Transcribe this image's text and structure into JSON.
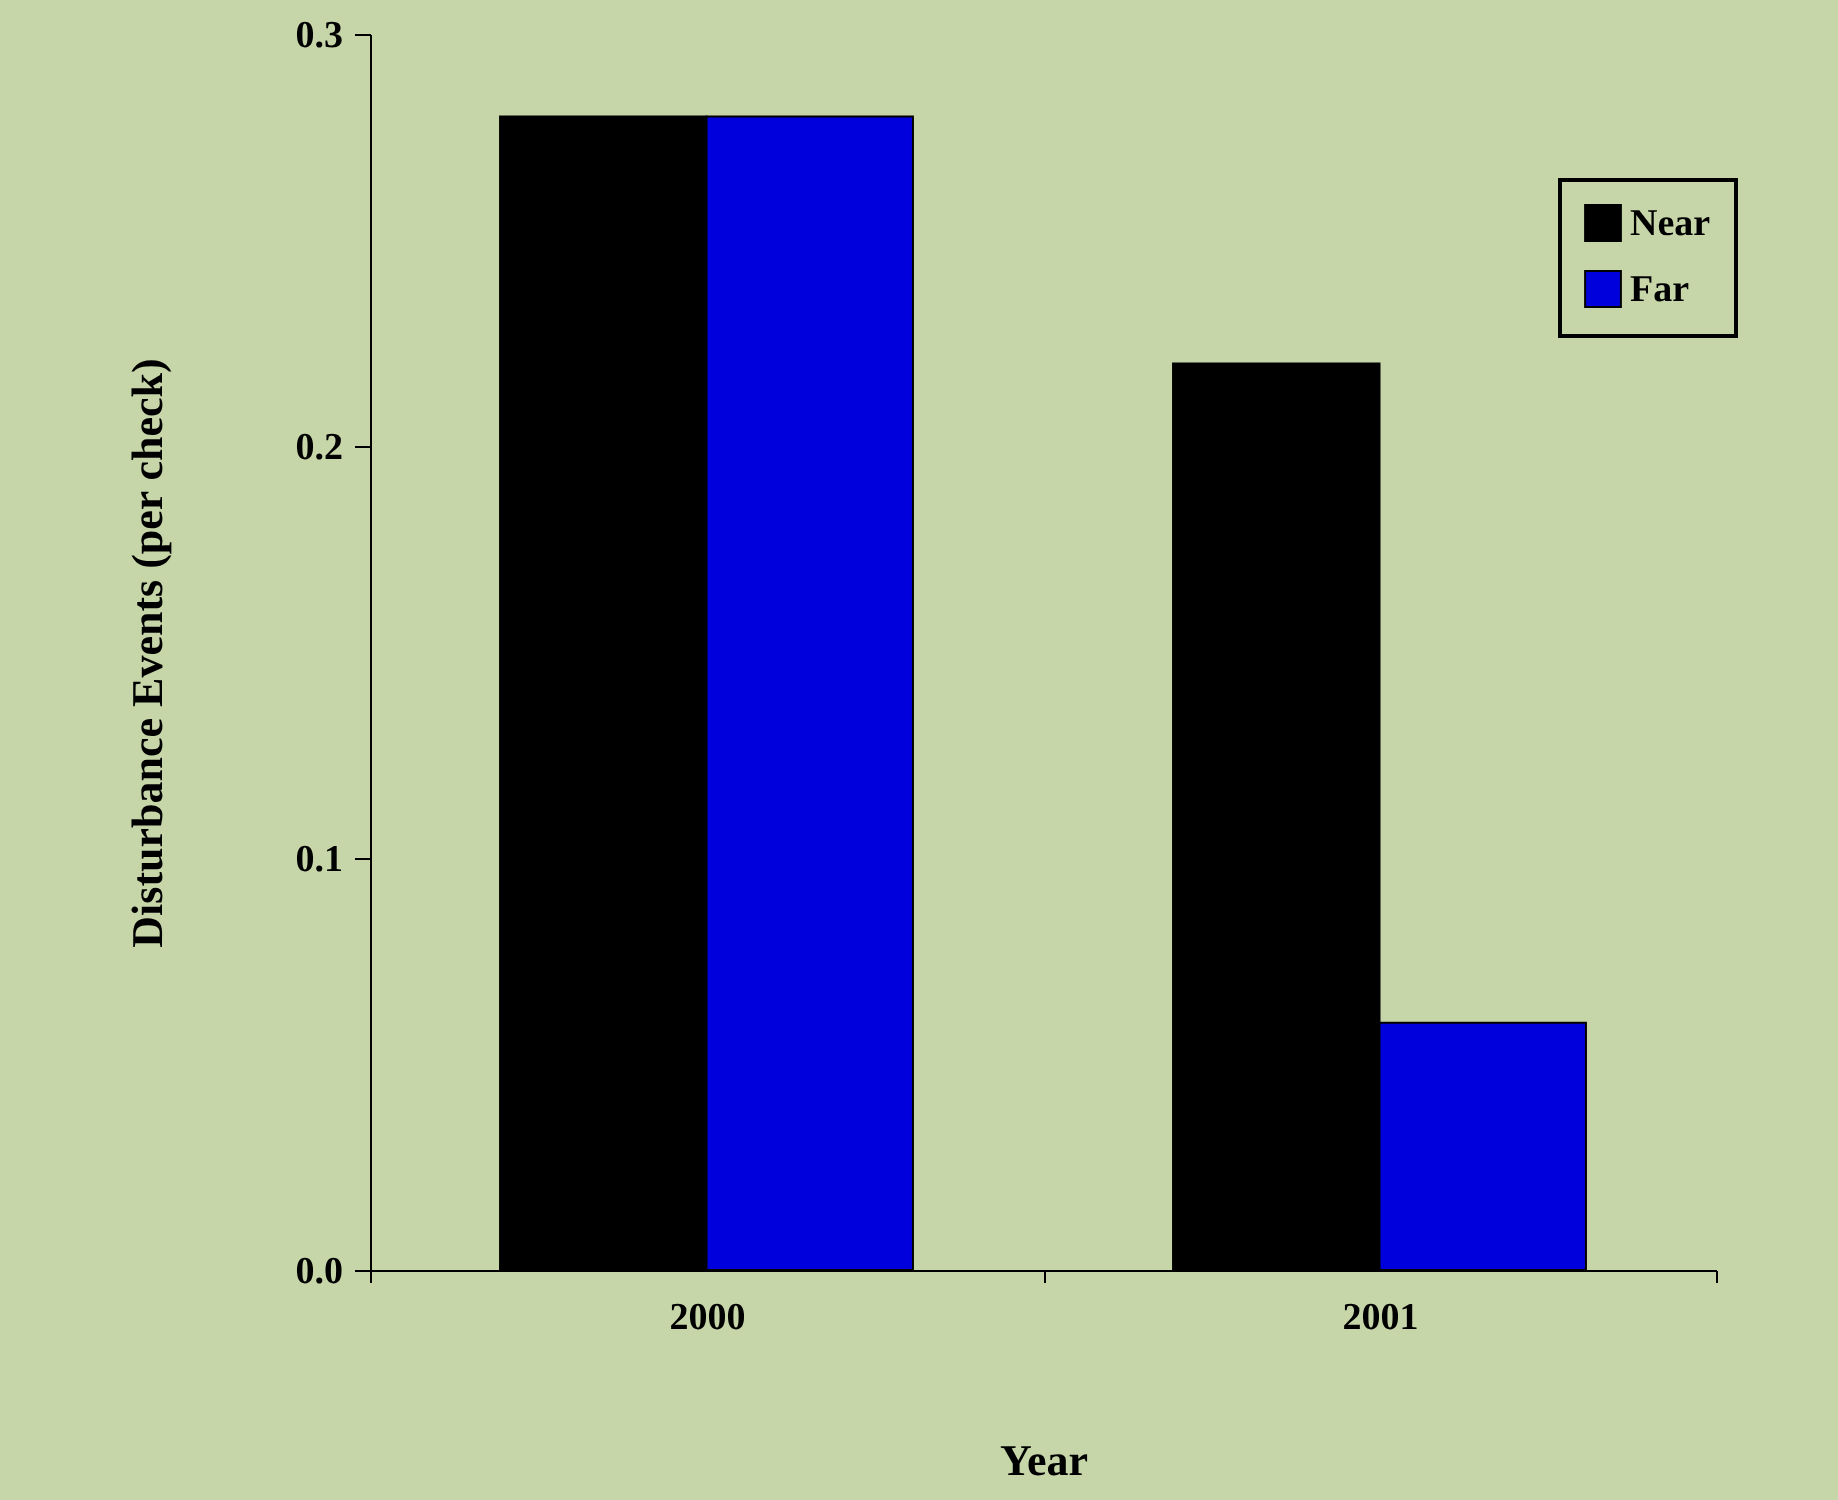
{
  "chart_data": {
    "type": "bar",
    "xlabel": "Year",
    "ylabel": "Disturbance Events (per check)",
    "categories": [
      "2000",
      "2001"
    ],
    "series": [
      {
        "name": "Near",
        "color": "#000000",
        "values": [
          0.28,
          0.22
        ]
      },
      {
        "name": "Far",
        "color": "#0000dd",
        "values": [
          0.28,
          0.06
        ]
      }
    ],
    "ylim": [
      0,
      0.3
    ],
    "yticks": [
      {
        "value": 0,
        "label": "0.0"
      },
      0.1,
      0.2,
      0.3
    ],
    "grid": false,
    "legend": "top right"
  }
}
